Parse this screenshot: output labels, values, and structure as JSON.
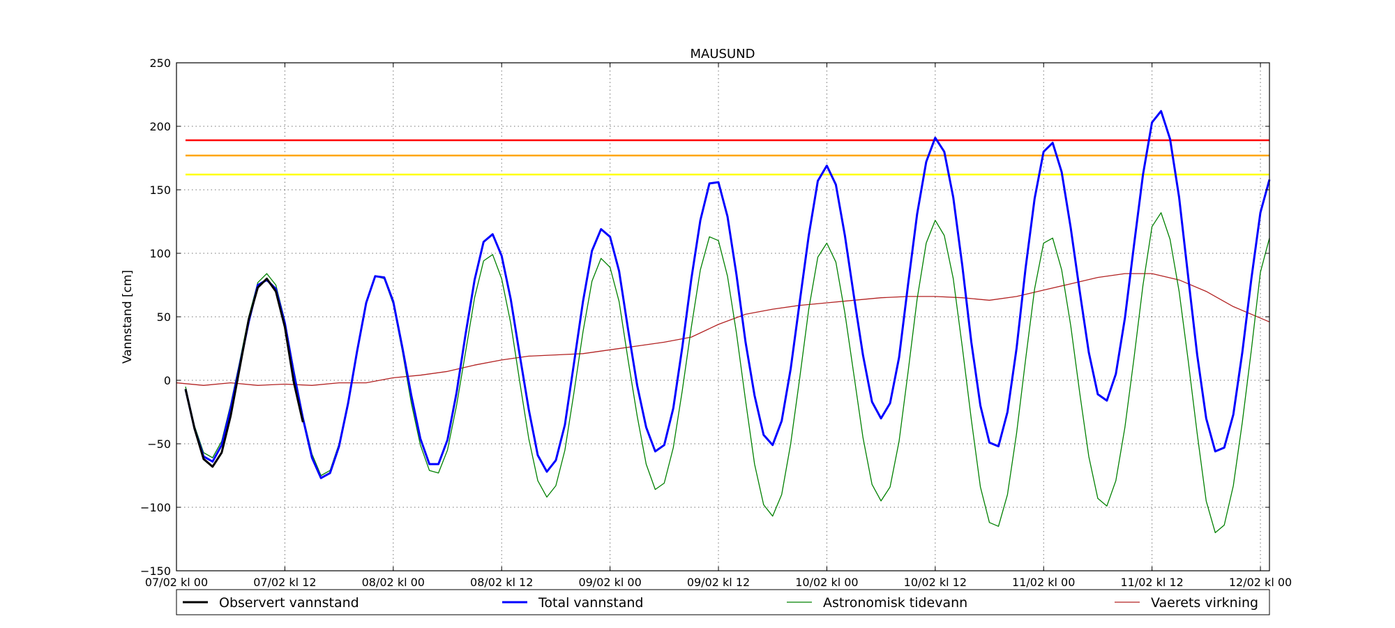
{
  "chart_data": {
    "type": "line",
    "title": "MAUSUND",
    "xlabel": "",
    "ylabel": "Vannstand [cm]",
    "ylim": [
      -150,
      250
    ],
    "xlim_hours": [
      0,
      121
    ],
    "yticks": [
      -150,
      -100,
      -50,
      0,
      50,
      100,
      150,
      200,
      250
    ],
    "ytick_labels": [
      "−150",
      "−100",
      "−50",
      "0",
      "50",
      "100",
      "150",
      "200",
      "250"
    ],
    "xticks": [
      {
        "hour": 0,
        "label": "07/02 kl 00"
      },
      {
        "hour": 12,
        "label": "07/02 kl 12"
      },
      {
        "hour": 24,
        "label": "08/02 kl 00"
      },
      {
        "hour": 36,
        "label": "08/02 kl 12"
      },
      {
        "hour": 48,
        "label": "09/02 kl 00"
      },
      {
        "hour": 60,
        "label": "09/02 kl 12"
      },
      {
        "hour": 72,
        "label": "10/02 kl 00"
      },
      {
        "hour": 84,
        "label": "10/02 kl 12"
      },
      {
        "hour": 96,
        "label": "11/02 kl 00"
      },
      {
        "hour": 108,
        "label": "11/02 kl 12"
      },
      {
        "hour": 120,
        "label": "12/02 kl 00"
      }
    ],
    "grid": true,
    "legend_position": "bottom",
    "thresholds": [
      {
        "value": 189,
        "color": "#ff0000"
      },
      {
        "value": 177,
        "color": "#ffa500"
      },
      {
        "value": 162,
        "color": "#ffff00"
      }
    ],
    "series": [
      {
        "name": "Observert vannstand",
        "color": "#000000",
        "points": [
          [
            1,
            -7
          ],
          [
            2,
            -38
          ],
          [
            3,
            -62
          ],
          [
            4,
            -68
          ],
          [
            5,
            -57
          ],
          [
            6,
            -28
          ],
          [
            7,
            10
          ],
          [
            8,
            48
          ],
          [
            9,
            73
          ],
          [
            10,
            80
          ],
          [
            11,
            70
          ],
          [
            12,
            42
          ],
          [
            13,
            -2
          ],
          [
            14,
            -33
          ]
        ]
      },
      {
        "name": "Total vannstand",
        "color": "#0000ff",
        "points": [
          [
            1,
            -7
          ],
          [
            2,
            -38
          ],
          [
            3,
            -60
          ],
          [
            4,
            -64
          ],
          [
            5,
            -51
          ],
          [
            6,
            -22
          ],
          [
            7,
            12
          ],
          [
            8,
            46
          ],
          [
            9,
            75
          ],
          [
            10,
            79
          ],
          [
            11,
            72
          ],
          [
            12,
            45
          ],
          [
            13,
            5
          ],
          [
            14,
            -30
          ],
          [
            15,
            -61
          ],
          [
            16,
            -77
          ],
          [
            17,
            -73
          ],
          [
            18,
            -52
          ],
          [
            19,
            -18
          ],
          [
            20,
            23
          ],
          [
            21,
            61
          ],
          [
            22,
            82
          ],
          [
            23,
            81
          ],
          [
            24,
            62
          ],
          [
            25,
            26
          ],
          [
            26,
            -12
          ],
          [
            27,
            -46
          ],
          [
            28,
            -66
          ],
          [
            29,
            -66
          ],
          [
            30,
            -47
          ],
          [
            31,
            -10
          ],
          [
            32,
            36
          ],
          [
            33,
            79
          ],
          [
            34,
            109
          ],
          [
            35,
            115
          ],
          [
            36,
            98
          ],
          [
            37,
            64
          ],
          [
            38,
            20
          ],
          [
            39,
            -23
          ],
          [
            40,
            -59
          ],
          [
            41,
            -72
          ],
          [
            42,
            -63
          ],
          [
            43,
            -35
          ],
          [
            44,
            13
          ],
          [
            45,
            62
          ],
          [
            46,
            102
          ],
          [
            47,
            119
          ],
          [
            48,
            113
          ],
          [
            49,
            86
          ],
          [
            50,
            40
          ],
          [
            51,
            -4
          ],
          [
            52,
            -37
          ],
          [
            53,
            -56
          ],
          [
            54,
            -51
          ],
          [
            55,
            -22
          ],
          [
            56,
            26
          ],
          [
            57,
            80
          ],
          [
            58,
            126
          ],
          [
            59,
            155
          ],
          [
            60,
            156
          ],
          [
            61,
            129
          ],
          [
            62,
            83
          ],
          [
            63,
            30
          ],
          [
            64,
            -12
          ],
          [
            65,
            -43
          ],
          [
            66,
            -51
          ],
          [
            67,
            -32
          ],
          [
            68,
            9
          ],
          [
            69,
            62
          ],
          [
            70,
            114
          ],
          [
            71,
            157
          ],
          [
            72,
            169
          ],
          [
            73,
            154
          ],
          [
            74,
            114
          ],
          [
            75,
            66
          ],
          [
            76,
            20
          ],
          [
            77,
            -17
          ],
          [
            78,
            -30
          ],
          [
            79,
            -18
          ],
          [
            80,
            18
          ],
          [
            81,
            76
          ],
          [
            82,
            131
          ],
          [
            83,
            172
          ],
          [
            84,
            191
          ],
          [
            85,
            180
          ],
          [
            86,
            144
          ],
          [
            87,
            90
          ],
          [
            88,
            30
          ],
          [
            89,
            -20
          ],
          [
            90,
            -49
          ],
          [
            91,
            -52
          ],
          [
            92,
            -25
          ],
          [
            93,
            25
          ],
          [
            94,
            88
          ],
          [
            95,
            143
          ],
          [
            96,
            180
          ],
          [
            97,
            187
          ],
          [
            98,
            164
          ],
          [
            99,
            120
          ],
          [
            100,
            70
          ],
          [
            101,
            22
          ],
          [
            102,
            -11
          ],
          [
            103,
            -16
          ],
          [
            104,
            5
          ],
          [
            105,
            49
          ],
          [
            106,
            106
          ],
          [
            107,
            162
          ],
          [
            108,
            203
          ],
          [
            109,
            212
          ],
          [
            110,
            190
          ],
          [
            111,
            144
          ],
          [
            112,
            82
          ],
          [
            113,
            20
          ],
          [
            114,
            -30
          ],
          [
            115,
            -56
          ],
          [
            116,
            -53
          ],
          [
            117,
            -27
          ],
          [
            118,
            22
          ],
          [
            119,
            80
          ],
          [
            120,
            132
          ],
          [
            121,
            158
          ]
        ]
      },
      {
        "name": "Astronomisk tidevann",
        "color": "#008000",
        "points": [
          [
            1,
            -5
          ],
          [
            2,
            -36
          ],
          [
            3,
            -57
          ],
          [
            4,
            -61
          ],
          [
            5,
            -48
          ],
          [
            6,
            -19
          ],
          [
            7,
            15
          ],
          [
            8,
            50
          ],
          [
            9,
            77
          ],
          [
            10,
            84
          ],
          [
            11,
            75
          ],
          [
            12,
            47
          ],
          [
            13,
            8
          ],
          [
            14,
            -28
          ],
          [
            15,
            -58
          ],
          [
            16,
            -75
          ],
          [
            17,
            -71
          ],
          [
            18,
            -50
          ],
          [
            19,
            -16
          ],
          [
            20,
            24
          ],
          [
            21,
            61
          ],
          [
            22,
            82
          ],
          [
            23,
            80
          ],
          [
            24,
            60
          ],
          [
            25,
            23
          ],
          [
            26,
            -18
          ],
          [
            27,
            -51
          ],
          [
            28,
            -71
          ],
          [
            29,
            -73
          ],
          [
            30,
            -55
          ],
          [
            31,
            -20
          ],
          [
            32,
            22
          ],
          [
            33,
            65
          ],
          [
            34,
            94
          ],
          [
            35,
            99
          ],
          [
            36,
            80
          ],
          [
            37,
            45
          ],
          [
            38,
            -1
          ],
          [
            39,
            -46
          ],
          [
            40,
            -79
          ],
          [
            41,
            -92
          ],
          [
            42,
            -83
          ],
          [
            43,
            -55
          ],
          [
            44,
            -10
          ],
          [
            45,
            38
          ],
          [
            46,
            78
          ],
          [
            47,
            96
          ],
          [
            48,
            89
          ],
          [
            49,
            62
          ],
          [
            50,
            16
          ],
          [
            51,
            -28
          ],
          [
            52,
            -66
          ],
          [
            53,
            -86
          ],
          [
            54,
            -81
          ],
          [
            55,
            -53
          ],
          [
            56,
            -8
          ],
          [
            57,
            42
          ],
          [
            58,
            87
          ],
          [
            59,
            113
          ],
          [
            60,
            110
          ],
          [
            61,
            82
          ],
          [
            62,
            37
          ],
          [
            63,
            -16
          ],
          [
            64,
            -66
          ],
          [
            65,
            -98
          ],
          [
            66,
            -107
          ],
          [
            67,
            -90
          ],
          [
            68,
            -50
          ],
          [
            69,
            2
          ],
          [
            70,
            56
          ],
          [
            71,
            97
          ],
          [
            72,
            108
          ],
          [
            73,
            93
          ],
          [
            74,
            53
          ],
          [
            75,
            4
          ],
          [
            76,
            -45
          ],
          [
            77,
            -82
          ],
          [
            78,
            -95
          ],
          [
            79,
            -84
          ],
          [
            80,
            -48
          ],
          [
            81,
            7
          ],
          [
            82,
            64
          ],
          [
            83,
            108
          ],
          [
            84,
            126
          ],
          [
            85,
            114
          ],
          [
            86,
            80
          ],
          [
            87,
            26
          ],
          [
            88,
            -31
          ],
          [
            89,
            -84
          ],
          [
            90,
            -112
          ],
          [
            91,
            -115
          ],
          [
            92,
            -90
          ],
          [
            93,
            -42
          ],
          [
            94,
            16
          ],
          [
            95,
            72
          ],
          [
            96,
            108
          ],
          [
            97,
            112
          ],
          [
            98,
            87
          ],
          [
            99,
            43
          ],
          [
            100,
            -10
          ],
          [
            101,
            -60
          ],
          [
            102,
            -93
          ],
          [
            103,
            -99
          ],
          [
            104,
            -79
          ],
          [
            105,
            -37
          ],
          [
            106,
            17
          ],
          [
            107,
            75
          ],
          [
            108,
            121
          ],
          [
            109,
            132
          ],
          [
            110,
            111
          ],
          [
            111,
            70
          ],
          [
            112,
            16
          ],
          [
            113,
            -42
          ],
          [
            114,
            -95
          ],
          [
            115,
            -120
          ],
          [
            116,
            -114
          ],
          [
            117,
            -83
          ],
          [
            118,
            -33
          ],
          [
            119,
            24
          ],
          [
            120,
            85
          ],
          [
            121,
            112
          ]
        ]
      },
      {
        "name": "Vaerets virkning",
        "color": "#b22222",
        "points": [
          [
            0,
            -2
          ],
          [
            3,
            -4
          ],
          [
            6,
            -2
          ],
          [
            9,
            -4
          ],
          [
            12,
            -3
          ],
          [
            15,
            -4
          ],
          [
            18,
            -2
          ],
          [
            21,
            -2
          ],
          [
            24,
            2
          ],
          [
            27,
            4
          ],
          [
            30,
            7
          ],
          [
            33,
            12
          ],
          [
            36,
            16
          ],
          [
            39,
            19
          ],
          [
            42,
            20
          ],
          [
            45,
            21
          ],
          [
            48,
            24
          ],
          [
            51,
            27
          ],
          [
            54,
            30
          ],
          [
            57,
            34
          ],
          [
            60,
            44
          ],
          [
            63,
            52
          ],
          [
            66,
            56
          ],
          [
            69,
            59
          ],
          [
            72,
            61
          ],
          [
            75,
            63
          ],
          [
            78,
            65
          ],
          [
            81,
            66
          ],
          [
            84,
            66
          ],
          [
            87,
            65
          ],
          [
            90,
            63
          ],
          [
            93,
            66
          ],
          [
            96,
            71
          ],
          [
            99,
            76
          ],
          [
            102,
            81
          ],
          [
            105,
            84
          ],
          [
            108,
            84
          ],
          [
            111,
            79
          ],
          [
            114,
            70
          ],
          [
            117,
            58
          ],
          [
            121,
            46
          ]
        ]
      }
    ]
  }
}
